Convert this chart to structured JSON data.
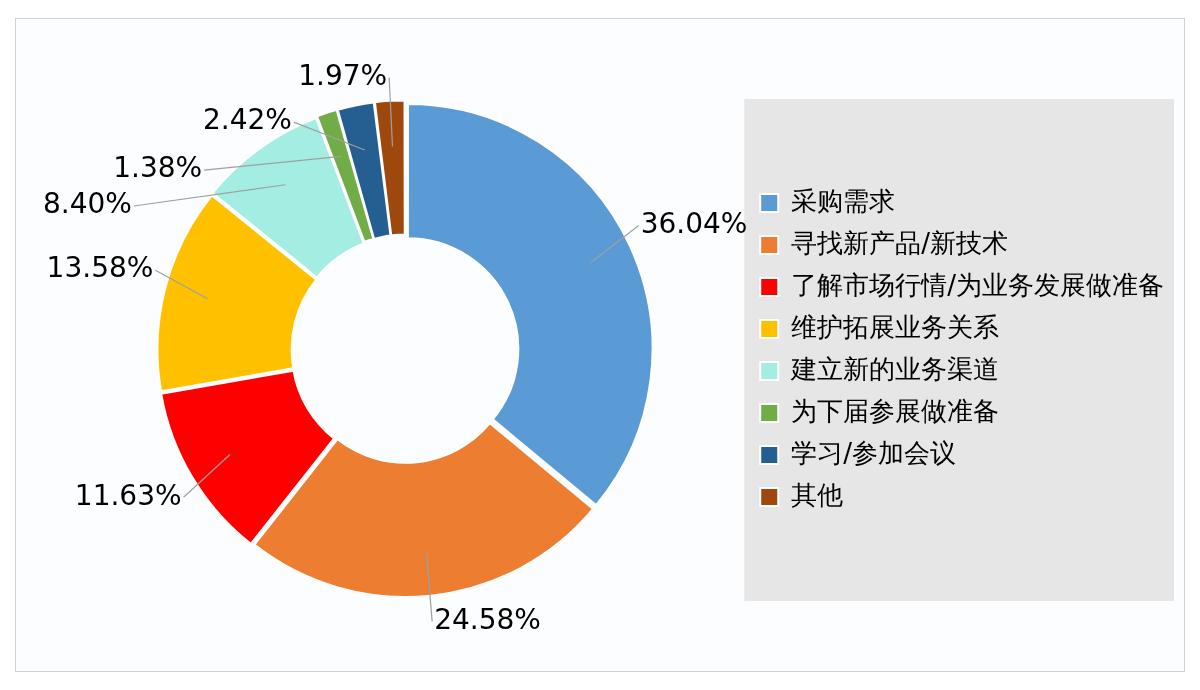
{
  "chart_data": {
    "type": "donut",
    "categories": [
      "采购需求",
      "寻找新产品/新技术",
      "了解市场行情/为业务发展做准备",
      "维护拓展业务关系",
      "建立新的业务渠道",
      "为下届参展做准备",
      "学习/参加会议",
      "其他"
    ],
    "values": [
      36.04,
      24.58,
      11.63,
      13.58,
      8.4,
      1.38,
      2.42,
      1.97
    ],
    "colors": [
      "#5b9bd5",
      "#ed7d31",
      "#ff0000",
      "#ffc000",
      "#a3ede2",
      "#70ad47",
      "#255e91",
      "#9e480e"
    ],
    "value_labels": [
      "36.04%",
      "24.58%",
      "11.63%",
      "13.58%",
      "8.40%",
      "1.38%",
      "2.42%",
      "1.97%"
    ],
    "legend": "right"
  }
}
